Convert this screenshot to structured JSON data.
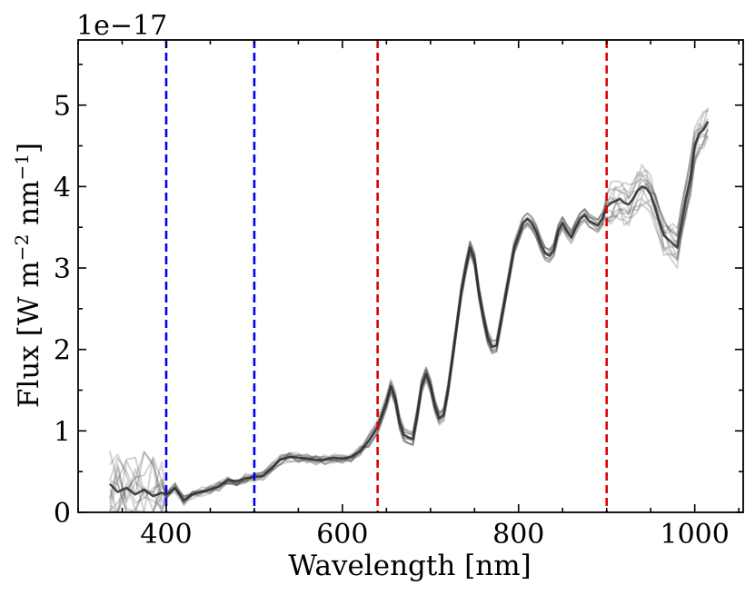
{
  "chart_data": {
    "type": "line",
    "title": "",
    "xlabel": "Wavelength [nm]",
    "ylabel": "Flux [W m",
    "ylabel_sup1": "−2",
    "ylabel_mid": " nm",
    "ylabel_sup2": "−1",
    "ylabel_end": "]",
    "y_offset_text": "1e−17",
    "xlim": [
      300,
      1055
    ],
    "ylim": [
      0,
      5.8
    ],
    "x_ticks": [
      400,
      600,
      800,
      1000
    ],
    "x_tick_labels": [
      "400",
      "600",
      "800",
      "1000"
    ],
    "y_ticks": [
      0,
      1,
      2,
      3,
      4,
      5
    ],
    "y_tick_labels": [
      "0",
      "1",
      "2",
      "3",
      "4",
      "5"
    ],
    "x_minor_step": 50,
    "y_minor_step": 0.5,
    "grid": false,
    "line_color": "#3a3a3a",
    "vertical_lines": [
      {
        "x": 400,
        "color": "#0000ee",
        "style": "dashed",
        "label": "blue-band-start"
      },
      {
        "x": 500,
        "color": "#0000ee",
        "style": "dashed",
        "label": "blue-band-end"
      },
      {
        "x": 640,
        "color": "#e00000",
        "style": "dashed",
        "label": "red-band-start"
      },
      {
        "x": 900,
        "color": "#e00000",
        "style": "dashed",
        "label": "red-band-end"
      }
    ],
    "series_count": 12,
    "mean_spectrum": {
      "x": [
        336,
        345,
        355,
        365,
        375,
        385,
        395,
        400,
        405,
        410,
        420,
        430,
        440,
        450,
        460,
        470,
        480,
        490,
        500,
        510,
        520,
        530,
        540,
        550,
        560,
        570,
        580,
        590,
        600,
        610,
        620,
        630,
        640,
        645,
        650,
        655,
        660,
        665,
        670,
        675,
        680,
        685,
        690,
        695,
        700,
        705,
        710,
        715,
        720,
        725,
        730,
        735,
        740,
        745,
        750,
        755,
        760,
        765,
        770,
        775,
        780,
        785,
        790,
        795,
        800,
        805,
        810,
        815,
        820,
        825,
        830,
        835,
        840,
        845,
        850,
        855,
        860,
        865,
        870,
        875,
        880,
        885,
        890,
        895,
        900,
        905,
        910,
        915,
        920,
        925,
        930,
        935,
        940,
        945,
        950,
        955,
        960,
        965,
        970,
        975,
        980,
        985,
        990,
        995,
        1000,
        1005,
        1010,
        1015
      ],
      "y": [
        0.35,
        0.25,
        0.3,
        0.22,
        0.28,
        0.2,
        0.24,
        0.22,
        0.25,
        0.3,
        0.15,
        0.22,
        0.25,
        0.28,
        0.32,
        0.4,
        0.38,
        0.42,
        0.43,
        0.45,
        0.55,
        0.65,
        0.68,
        0.67,
        0.66,
        0.64,
        0.65,
        0.67,
        0.66,
        0.68,
        0.75,
        0.88,
        1.05,
        1.2,
        1.35,
        1.55,
        1.4,
        1.1,
        0.95,
        0.92,
        0.9,
        1.2,
        1.55,
        1.7,
        1.55,
        1.3,
        1.15,
        1.2,
        1.5,
        1.9,
        2.3,
        2.7,
        3.0,
        3.25,
        3.1,
        2.7,
        2.4,
        2.15,
        2.03,
        2.05,
        2.35,
        2.65,
        2.95,
        3.25,
        3.4,
        3.55,
        3.6,
        3.55,
        3.45,
        3.3,
        3.18,
        3.15,
        3.22,
        3.45,
        3.55,
        3.45,
        3.38,
        3.5,
        3.6,
        3.65,
        3.58,
        3.55,
        3.52,
        3.6,
        3.75,
        3.8,
        3.82,
        3.85,
        3.8,
        3.78,
        3.85,
        3.95,
        4.0,
        3.98,
        3.9,
        3.75,
        3.55,
        3.4,
        3.35,
        3.3,
        3.25,
        3.55,
        3.85,
        4.1,
        4.5,
        4.65,
        4.7,
        4.8
      ]
    }
  }
}
